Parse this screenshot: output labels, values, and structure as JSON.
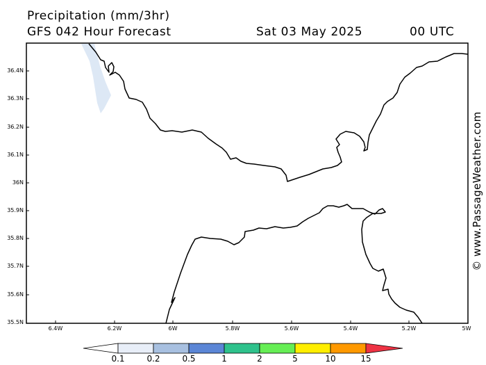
{
  "header": {
    "title": "Precipitation (mm/3hr)",
    "model": "GFS 042 Hour Forecast",
    "date": "Sat 03 May 2025",
    "time": "00 UTC"
  },
  "map": {
    "lat_labels": [
      "36.4N",
      "36.3N",
      "36.2N",
      "36.1N",
      "36N",
      "35.9N",
      "35.8N",
      "35.7N",
      "35.6N",
      "35.5N"
    ],
    "lon_labels": [
      "6.4W",
      "6.2W",
      "6W",
      "5.8W",
      "5.6W",
      "5.4W",
      "5.2W",
      "5W"
    ],
    "colors": {
      "coast": "#000000",
      "frame": "#000000",
      "light_precip": "#dde8f5"
    }
  },
  "copyright": "© www.PassageWeather.com",
  "colorbar": {
    "labels": [
      "0.1",
      "0.2",
      "0.5",
      "1",
      "2",
      "5",
      "10",
      "15"
    ],
    "colors": [
      "#ffffff",
      "#e8eef8",
      "#a8c0e0",
      "#5b86d6",
      "#2fc28c",
      "#66ee55",
      "#ffee00",
      "#ff9900",
      "#ee3344"
    ]
  }
}
